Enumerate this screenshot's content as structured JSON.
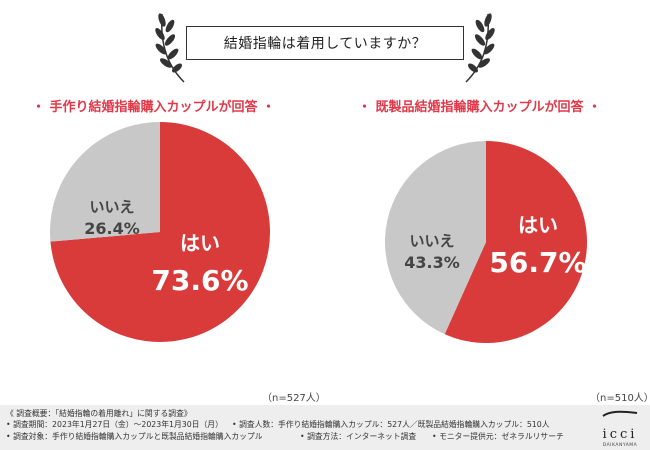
{
  "colors": {
    "yes": "#d83b3a",
    "no": "#c8c8c8",
    "accent": "#e0394a",
    "footer_bg": "#eeeeee"
  },
  "title": "結婚指輪は着用していますか？",
  "chart_data": [
    {
      "type": "pie",
      "title": "・ 手作り結婚指輪購入カップルが回答 ・",
      "categories": [
        "はい",
        "いいえ"
      ],
      "values": [
        73.6,
        26.4
      ],
      "value_labels": [
        "73.6%",
        "26.4%"
      ],
      "sample": "（n=527人）"
    },
    {
      "type": "pie",
      "title": "・ 既製品結婚指輪購入カップルが回答 ・",
      "categories": [
        "はい",
        "いいえ"
      ],
      "values": [
        56.7,
        43.3
      ],
      "value_labels": [
        "56.7%",
        "43.3%"
      ],
      "sample": "（n=510人）"
    }
  ],
  "footer": {
    "line1": "《 調査概要：「結婚指輪の着用離れ」に関する調査》",
    "line2a": "• 調査期間：2023年1月27日（金）〜2023年1月30日（月）",
    "line2b": "• 調査人数：手作り結婚指輪購入カップル：527人／既製品結婚指輪購入カップル：510人",
    "line3a": "• 調査対象：手作り結婚指輪購入カップルと既製品結婚指輪購入カップル",
    "line3b": "• 調査方法：インターネット調査",
    "line3c": "• モニター提供元：ゼネラルリサーチ"
  },
  "logo": {
    "word": "icci",
    "sub": "DAIKANYAMA"
  }
}
